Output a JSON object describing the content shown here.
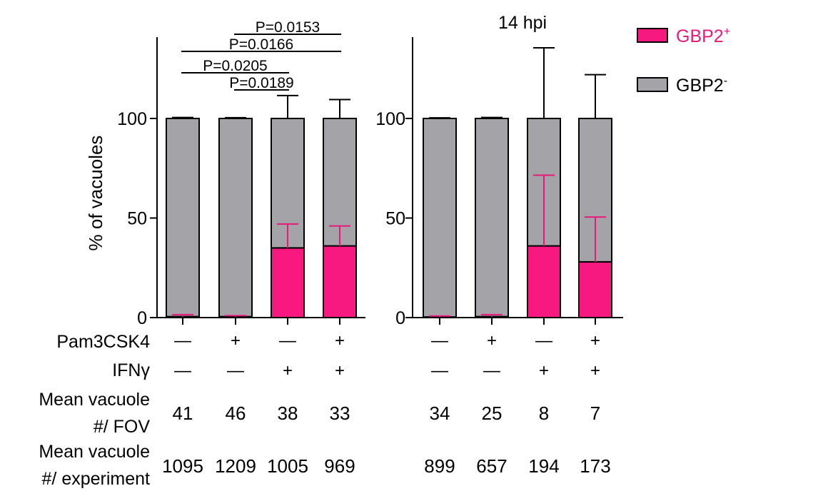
{
  "chart_data": [
    {
      "type": "bar",
      "stacked": true,
      "title": "",
      "ylabel": "% of vacuoles",
      "ylim": [
        0,
        100
      ],
      "yticks": [
        0,
        50,
        100
      ],
      "categories": [
        "1",
        "2",
        "3",
        "4"
      ],
      "series": [
        {
          "name": "GBP2+",
          "color": "#f7197f",
          "values": [
            0.5,
            0.5,
            35,
            36
          ],
          "error_upper": [
            1.5,
            1,
            47,
            46
          ]
        },
        {
          "name": "GBP2-",
          "color": "#a4a4a8",
          "values": [
            99.5,
            99.5,
            65,
            64
          ],
          "error_upper": [
            100.5,
            100.4,
            111.5,
            109.5
          ]
        }
      ],
      "significance": [
        {
          "from": 2,
          "to": 4,
          "label": "P=0.0153"
        },
        {
          "from": 1,
          "to": 4,
          "label": "P=0.0166"
        },
        {
          "from": 1,
          "to": 3,
          "label": "P=0.0205"
        },
        {
          "from": 2,
          "to": 3,
          "label": "P=0.0189"
        }
      ],
      "rows": {
        "pam3csk4": [
          "—",
          "+",
          "—",
          "+"
        ],
        "ifng": [
          "—",
          "—",
          "+",
          "+"
        ],
        "fov": [
          "41",
          "46",
          "38",
          "33"
        ],
        "experiment": [
          "1095",
          "1209",
          "1005",
          "969"
        ]
      }
    },
    {
      "type": "bar",
      "stacked": true,
      "title": "14 hpi",
      "ylabel": "",
      "ylim": [
        0,
        100
      ],
      "yticks": [
        0,
        50,
        100
      ],
      "categories": [
        "1",
        "2",
        "3",
        "4"
      ],
      "series": [
        {
          "name": "GBP2+",
          "color": "#f7197f",
          "values": [
            0.3,
            0.5,
            36,
            28
          ],
          "error_upper": [
            0.8,
            1.5,
            71.5,
            50.5
          ]
        },
        {
          "name": "GBP2-",
          "color": "#a4a4a8",
          "values": [
            99.7,
            99.5,
            64,
            72
          ],
          "error_upper": [
            100.3,
            100.5,
            135.5,
            122
          ]
        }
      ],
      "significance": [],
      "rows": {
        "pam3csk4": [
          "—",
          "+",
          "—",
          "+"
        ],
        "ifng": [
          "—",
          "—",
          "+",
          "+"
        ],
        "fov": [
          "34",
          "25",
          "8",
          "7"
        ],
        "experiment": [
          "899",
          "657",
          "194",
          "173"
        ]
      }
    }
  ],
  "legend": {
    "placement": "top-right",
    "items": [
      {
        "base": "GBP2",
        "sup": "+",
        "color": "#f7197f",
        "text_color": "#e8197d"
      },
      {
        "base": "GBP2",
        "sup": "-",
        "color": "#a4a4a8",
        "text_color": "#000000"
      }
    ]
  },
  "row_labels": {
    "pam3csk4": "Pam3CSK4",
    "ifng": "IFNγ",
    "fov_line1": "Mean vacuole",
    "fov_line2": "#/ FOV",
    "exp_line1": "Mean vacuole",
    "exp_line2": "#/ experiment"
  }
}
